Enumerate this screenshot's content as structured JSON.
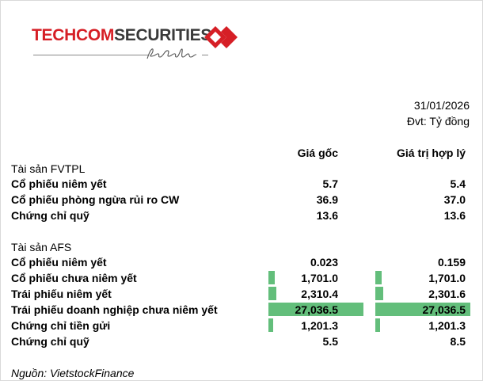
{
  "logo": {
    "brand_part1": "TECHCOM",
    "brand_part2": "SECURITIES",
    "tagline": "BeSpoke",
    "colors": {
      "red": "#d61f26",
      "dark": "#3a3a3a"
    }
  },
  "header": {
    "date": "31/01/2026",
    "unit": "Đvt: Tỷ đồng",
    "col1": "Giá gốc",
    "col2": "Giá trị hợp lý"
  },
  "fvtpl": {
    "section_title": "Tài sản FVTPL",
    "rows": [
      {
        "label": "Cổ phiếu niêm yết",
        "cost": "5.7",
        "fair": "5.4"
      },
      {
        "label": "Cổ phiếu phòng ngừa rủi ro CW",
        "cost": "36.9",
        "fair": "37.0"
      },
      {
        "label": "Chứng chỉ quỹ",
        "cost": "13.6",
        "fair": "13.6"
      }
    ]
  },
  "afs": {
    "section_title": "Tài sản AFS",
    "bar_color": "#63be7b",
    "rows": [
      {
        "label": "Cổ phiếu niêm yết",
        "cost": "0.023",
        "fair": "0.159",
        "cost_value": 0.023,
        "fair_value": 0.159
      },
      {
        "label": "Cổ phiếu chưa niêm yết",
        "cost": "1,701.0",
        "fair": "1,701.0",
        "cost_value": 1701.0,
        "fair_value": 1701.0
      },
      {
        "label": "Trái phiếu niêm yết",
        "cost": "2,310.4",
        "fair": "2,301.6",
        "cost_value": 2310.4,
        "fair_value": 2301.6
      },
      {
        "label": "Trái phiếu doanh nghiệp chưa niêm yết",
        "cost": "27,036.5",
        "fair": "27,036.5",
        "cost_value": 27036.5,
        "fair_value": 27036.5
      },
      {
        "label": "Chứng chỉ tiền gửi",
        "cost": "1,201.3",
        "fair": "1,201.3",
        "cost_value": 1201.3,
        "fair_value": 1201.3
      },
      {
        "label": "Chứng chỉ quỹ",
        "cost": "5.5",
        "fair": "8.5",
        "cost_value": 5.5,
        "fair_value": 8.5
      }
    ]
  },
  "source": "Nguồn: VietstockFinance"
}
